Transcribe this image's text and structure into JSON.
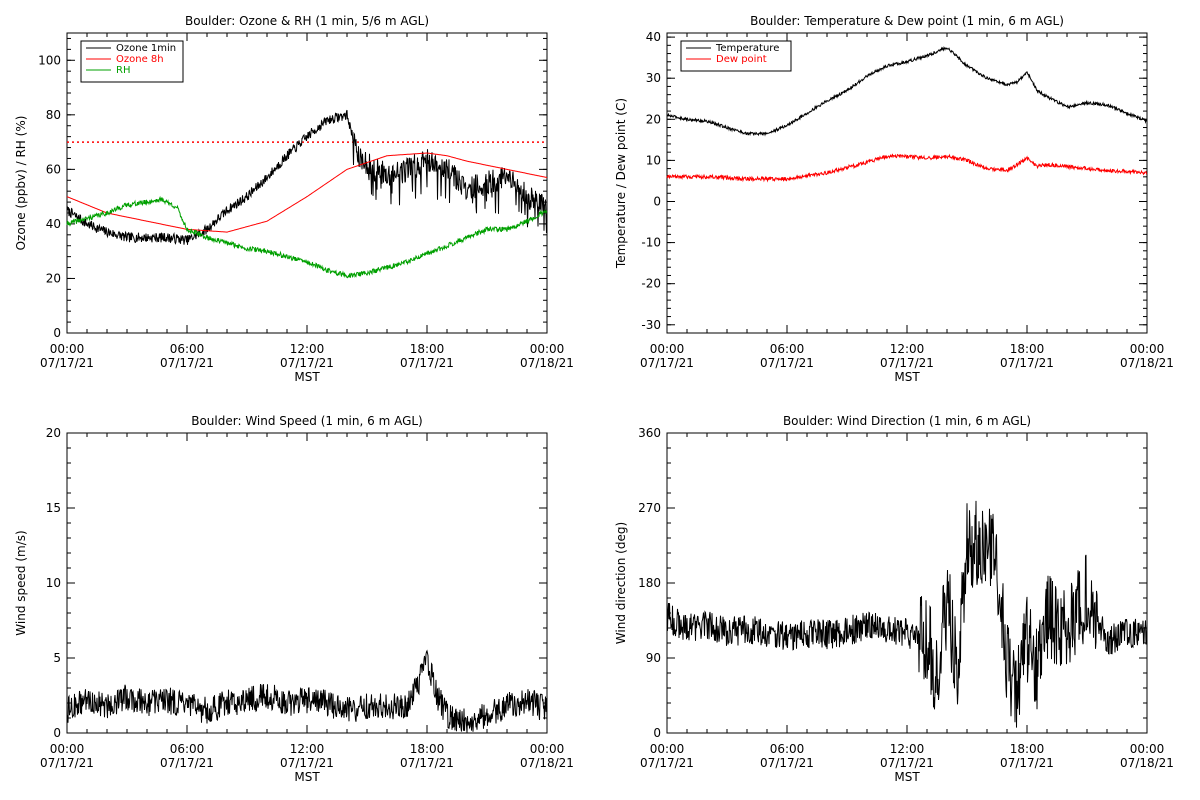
{
  "chart_data": [
    {
      "type": "line",
      "title": "Boulder: Ozone & RH (1 min, 5/6 m AGL)",
      "xlabel": "MST",
      "ylabel": "Ozone (ppbv) / RH (%)",
      "xlim": [
        "07/17/21 00:00",
        "07/18/21 00:00"
      ],
      "ylim": [
        0,
        110
      ],
      "yticks": [
        0,
        20,
        40,
        60,
        80,
        100
      ],
      "xticks": [
        {
          "time": "00:00",
          "date": "07/17/21"
        },
        {
          "time": "06:00",
          "date": "07/17/21"
        },
        {
          "time": "12:00",
          "date": "07/17/21"
        },
        {
          "time": "18:00",
          "date": "07/17/21"
        },
        {
          "time": "00:00",
          "date": "07/18/21"
        }
      ],
      "legend_position": "top-left",
      "reference_line": {
        "y": 70,
        "color": "#ff0000",
        "style": "dotted"
      },
      "series": [
        {
          "name": "Ozone 1min",
          "color": "#000000",
          "x": [
            "00:00",
            "01:00",
            "02:00",
            "03:00",
            "04:00",
            "05:00",
            "06:00",
            "07:00",
            "08:00",
            "09:00",
            "10:00",
            "11:00",
            "12:00",
            "13:00",
            "14:00",
            "14:30",
            "15:00",
            "16:00",
            "17:00",
            "18:00",
            "19:00",
            "20:00",
            "21:00",
            "22:00",
            "23:00",
            "24:00"
          ],
          "values": [
            45,
            40,
            37,
            35,
            35,
            35,
            34,
            38,
            45,
            50,
            57,
            65,
            72,
            78,
            80,
            66,
            62,
            58,
            60,
            63,
            60,
            53,
            55,
            57,
            50,
            46
          ]
        },
        {
          "name": "Ozone 8h",
          "color": "#ff0000",
          "x": [
            "00:00",
            "02:00",
            "04:00",
            "06:00",
            "08:00",
            "10:00",
            "12:00",
            "14:00",
            "16:00",
            "18:00",
            "19:00",
            "20:00",
            "22:00",
            "24:00"
          ],
          "values": [
            50,
            44,
            41,
            38,
            37,
            41,
            50,
            60,
            65,
            66,
            65,
            63,
            60,
            57
          ]
        },
        {
          "name": "RH",
          "color": "#00a000",
          "x": [
            "00:00",
            "01:00",
            "02:00",
            "03:00",
            "04:00",
            "04:45",
            "05:30",
            "06:00",
            "07:00",
            "08:00",
            "09:00",
            "10:00",
            "11:00",
            "12:00",
            "13:00",
            "14:00",
            "15:00",
            "16:00",
            "17:00",
            "18:00",
            "19:00",
            "20:00",
            "21:00",
            "22:00",
            "23:00",
            "24:00"
          ],
          "values": [
            40,
            42,
            44,
            47,
            48,
            49,
            46,
            38,
            35,
            33,
            31,
            30,
            28,
            26,
            23,
            21,
            22,
            24,
            26,
            29,
            32,
            35,
            38,
            38,
            41,
            45
          ]
        }
      ]
    },
    {
      "type": "line",
      "title": "Boulder: Temperature & Dew point (1 min, 6 m AGL)",
      "xlabel": "MST",
      "ylabel": "Temperature / Dew point (C)",
      "xlim": [
        "07/17/21 00:00",
        "07/18/21 00:00"
      ],
      "ylim": [
        -32,
        41
      ],
      "yticks": [
        -30,
        -20,
        -10,
        0,
        10,
        20,
        30,
        40
      ],
      "xticks": [
        {
          "time": "00:00",
          "date": "07/17/21"
        },
        {
          "time": "06:00",
          "date": "07/17/21"
        },
        {
          "time": "12:00",
          "date": "07/17/21"
        },
        {
          "time": "18:00",
          "date": "07/17/21"
        },
        {
          "time": "00:00",
          "date": "07/18/21"
        }
      ],
      "legend_position": "top-left",
      "series": [
        {
          "name": "Temperature",
          "color": "#000000",
          "x": [
            "00:00",
            "01:00",
            "02:00",
            "03:00",
            "04:00",
            "05:00",
            "06:00",
            "07:00",
            "08:00",
            "09:00",
            "10:00",
            "11:00",
            "12:00",
            "13:00",
            "14:00",
            "15:00",
            "16:00",
            "17:00",
            "17:30",
            "18:00",
            "18:30",
            "19:00",
            "20:00",
            "21:00",
            "22:00",
            "23:00",
            "24:00"
          ],
          "values": [
            21,
            20,
            19.5,
            18,
            16.5,
            16.5,
            18.5,
            21.5,
            24.5,
            27,
            30.5,
            33,
            34,
            35.5,
            37.5,
            33,
            30,
            28.5,
            29,
            31.5,
            27,
            25.5,
            23,
            24,
            23.5,
            21.5,
            19.5
          ]
        },
        {
          "name": "Dew point",
          "color": "#ff0000",
          "x": [
            "00:00",
            "02:00",
            "04:00",
            "06:00",
            "08:00",
            "10:00",
            "11:00",
            "12:00",
            "13:00",
            "14:00",
            "15:00",
            "16:00",
            "17:00",
            "18:00",
            "18:30",
            "19:00",
            "20:00",
            "22:00",
            "24:00"
          ],
          "values": [
            6,
            6,
            5.5,
            5.5,
            7,
            9.5,
            11,
            11,
            10.5,
            11,
            10,
            8,
            7.5,
            10.5,
            8.5,
            9,
            8.5,
            7.5,
            7
          ]
        }
      ]
    },
    {
      "type": "line",
      "title": "Boulder: Wind Speed (1 min, 6 m AGL)",
      "xlabel": "MST",
      "ylabel": "Wind speed (m/s)",
      "xlim": [
        "07/17/21 00:00",
        "07/18/21 00:00"
      ],
      "ylim": [
        0,
        20
      ],
      "yticks": [
        0,
        5,
        10,
        15,
        20
      ],
      "xticks": [
        {
          "time": "00:00",
          "date": "07/17/21"
        },
        {
          "time": "06:00",
          "date": "07/17/21"
        },
        {
          "time": "12:00",
          "date": "07/17/21"
        },
        {
          "time": "18:00",
          "date": "07/17/21"
        },
        {
          "time": "00:00",
          "date": "07/18/21"
        }
      ],
      "series": [
        {
          "color": "#000000",
          "x": [
            "00:00",
            "01:00",
            "02:00",
            "03:00",
            "04:00",
            "05:00",
            "06:00",
            "07:00",
            "08:00",
            "09:00",
            "10:00",
            "11:00",
            "12:00",
            "13:00",
            "14:00",
            "15:00",
            "16:00",
            "17:00",
            "17:30",
            "18:00",
            "18:30",
            "19:00",
            "20:00",
            "21:00",
            "22:00",
            "23:00",
            "24:00"
          ],
          "values": [
            1.5,
            2.2,
            1.8,
            2.4,
            2.0,
            2.2,
            1.8,
            1.5,
            2.0,
            2.2,
            2.5,
            2.0,
            2.2,
            2.0,
            1.5,
            1.8,
            1.8,
            1.8,
            3.0,
            5.0,
            2.5,
            1.2,
            0.8,
            1.2,
            1.8,
            2.2,
            1.5
          ]
        }
      ]
    },
    {
      "type": "line",
      "title": "Boulder: Wind Direction (1 min, 6 m AGL)",
      "xlabel": "MST",
      "ylabel": "Wind direction (deg)",
      "xlim": [
        "07/17/21 00:00",
        "07/18/21 00:00"
      ],
      "ylim": [
        0,
        360
      ],
      "yticks": [
        0,
        90,
        180,
        270,
        360
      ],
      "xticks": [
        {
          "time": "00:00",
          "date": "07/17/21"
        },
        {
          "time": "06:00",
          "date": "07/17/21"
        },
        {
          "time": "12:00",
          "date": "07/17/21"
        },
        {
          "time": "18:00",
          "date": "07/17/21"
        },
        {
          "time": "00:00",
          "date": "07/18/21"
        }
      ],
      "series": [
        {
          "color": "#000000",
          "x": [
            "00:00",
            "01:00",
            "02:00",
            "03:00",
            "04:00",
            "05:00",
            "06:00",
            "07:00",
            "08:00",
            "09:00",
            "10:00",
            "11:00",
            "12:00",
            "13:00",
            "13:30",
            "14:00",
            "14:30",
            "15:00",
            "16:00",
            "16:30",
            "17:00",
            "17:30",
            "18:00",
            "18:30",
            "19:00",
            "20:00",
            "21:00",
            "22:00",
            "23:00",
            "24:00"
          ],
          "values": [
            140,
            125,
            130,
            120,
            125,
            120,
            115,
            120,
            118,
            122,
            130,
            125,
            120,
            110,
            70,
            160,
            80,
            230,
            220,
            200,
            80,
            60,
            110,
            80,
            140,
            120,
            170,
            110,
            120,
            120
          ]
        }
      ]
    }
  ]
}
